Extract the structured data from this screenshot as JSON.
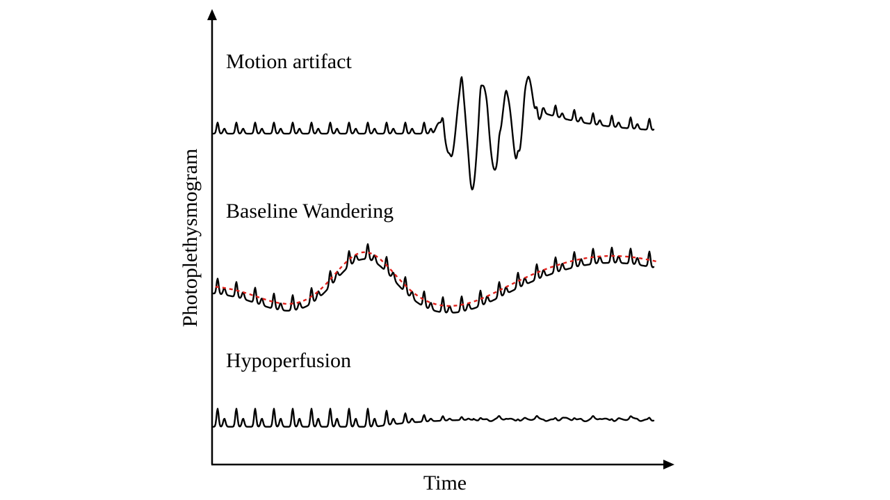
{
  "figure": {
    "x_axis_label": "Time",
    "y_axis_label": "Photoplethysmogram",
    "panels": [
      {
        "id": "motion",
        "label": "Motion artifact"
      },
      {
        "id": "baseline",
        "label": "Baseline Wandering"
      },
      {
        "id": "hypo",
        "label": "Hypoperfusion"
      }
    ]
  },
  "colors": {
    "axis": "#000000",
    "signal": "#000000",
    "baseline_trend": "#e0201a"
  }
}
